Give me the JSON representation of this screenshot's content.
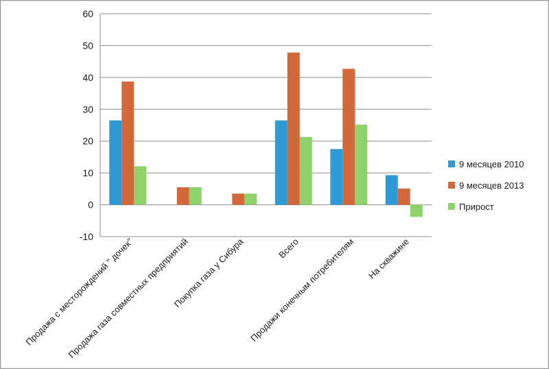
{
  "chart_data": {
    "type": "bar",
    "categories": [
      "Продажа с месторождений \" дочек\"",
      "Продажа газа совместных предприятий",
      "Покупка газа у Сибура",
      "Всего",
      "Продажи конечным потребителям",
      "На скважине"
    ],
    "series": [
      {
        "name": "9 месяцев 2010",
        "color": "#2e9bd6",
        "values": [
          26.5,
          0,
          0,
          26.5,
          17.5,
          9.3
        ]
      },
      {
        "name": "9 месяцев 2013",
        "color": "#d2693a",
        "values": [
          38.7,
          5.5,
          3.5,
          47.8,
          42.7,
          5.1
        ]
      },
      {
        "name": "Прирост",
        "color": "#8fd16a",
        "values": [
          12.1,
          5.5,
          3.5,
          21.3,
          25.2,
          -3.8
        ]
      }
    ],
    "yticks": [
      -10,
      0,
      10,
      20,
      30,
      40,
      50,
      60
    ],
    "ylim": [
      -10,
      60
    ],
    "grid": true,
    "legend_position": "right"
  }
}
